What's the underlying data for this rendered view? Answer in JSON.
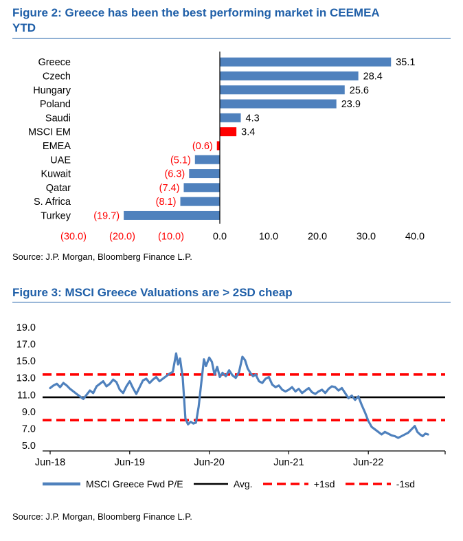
{
  "colors": {
    "title_blue": "#1f5fa8",
    "bar_blue": "#4f81bd",
    "line_blue": "#4f81bd",
    "highlight_red": "#ff0000",
    "negative_red": "#ff0000",
    "axis_black": "#000000"
  },
  "figure2": {
    "title_line1": "Figure 2: Greece has been the best performing market in CEEMEA",
    "title_line2": "YTD",
    "source": "Source: J.P. Morgan, Bloomberg Finance L.P."
  },
  "figure3": {
    "title": "Figure 3: MSCI Greece Valuations are > 2SD cheap",
    "source": "Source: J.P. Morgan, Bloomberg Finance L.P."
  },
  "chart_data": [
    {
      "type": "bar",
      "orientation": "horizontal",
      "title": "Figure 2: Greece has been the best performing market in CEEMEA YTD",
      "categories": [
        "Greece",
        "Czech",
        "Hungary",
        "Poland",
        "Saudi",
        "MSCI EM",
        "EMEA",
        "UAE",
        "Kuwait",
        "Qatar",
        "S. Africa",
        "Turkey"
      ],
      "values": [
        35.1,
        28.4,
        25.6,
        23.9,
        4.3,
        3.4,
        -0.6,
        -5.1,
        -6.3,
        -7.4,
        -8.1,
        -19.7
      ],
      "data_labels": [
        "35.1",
        "28.4",
        "25.6",
        "23.9",
        "4.3",
        "3.4",
        "(0.6)",
        "(5.1)",
        "(6.3)",
        "(7.4)",
        "(8.1)",
        "(19.7)"
      ],
      "bar_colors": [
        "#4f81bd",
        "#4f81bd",
        "#4f81bd",
        "#4f81bd",
        "#4f81bd",
        "#ff0000",
        "#ff0000",
        "#4f81bd",
        "#4f81bd",
        "#4f81bd",
        "#4f81bd",
        "#4f81bd"
      ],
      "xlim": [
        -30,
        40
      ],
      "x_ticks": [
        -30,
        -20,
        -10,
        0,
        10,
        20,
        30,
        40
      ],
      "x_tick_labels": [
        "(30.0)",
        "(20.0)",
        "(10.0)",
        "0.0",
        "10.0",
        "20.0",
        "30.0",
        "40.0"
      ],
      "grid": false,
      "legend_position": "none"
    },
    {
      "type": "line",
      "title": "Figure 3: MSCI Greece Valuations are > 2SD cheap",
      "x_axis": {
        "unit": "months since Jun-2018",
        "ticks": [
          0,
          12,
          24,
          36,
          48
        ],
        "tick_labels": [
          "Jun-18",
          "Jun-19",
          "Jun-20",
          "Jun-21",
          "Jun-22"
        ],
        "range": [
          0,
          59
        ]
      },
      "y_axis": {
        "ticks": [
          5,
          7,
          9,
          11,
          13,
          15,
          17,
          19
        ],
        "tick_labels": [
          "5.0",
          "7.0",
          "9.0",
          "11.0",
          "13.0",
          "15.0",
          "17.0",
          "19.0"
        ],
        "range": [
          4.3,
          19.6
        ]
      },
      "series": [
        {
          "name": "MSCI Greece Fwd P/E",
          "color": "#4f81bd",
          "style": "solid",
          "points": [
            [
              0,
              11.8
            ],
            [
              0.5,
              12.1
            ],
            [
              1,
              12.3
            ],
            [
              1.5,
              11.9
            ],
            [
              2,
              12.4
            ],
            [
              2.5,
              12.1
            ],
            [
              3,
              11.7
            ],
            [
              3.5,
              11.4
            ],
            [
              4,
              11.1
            ],
            [
              4.5,
              10.8
            ],
            [
              5,
              10.5
            ],
            [
              5.5,
              11.0
            ],
            [
              6,
              11.5
            ],
            [
              6.5,
              11.2
            ],
            [
              7,
              12.0
            ],
            [
              7.5,
              12.3
            ],
            [
              8,
              12.6
            ],
            [
              8.5,
              12.0
            ],
            [
              9,
              12.3
            ],
            [
              9.5,
              12.8
            ],
            [
              10,
              12.5
            ],
            [
              10.5,
              11.6
            ],
            [
              11,
              11.2
            ],
            [
              11.5,
              12.0
            ],
            [
              12,
              12.6
            ],
            [
              12.5,
              11.8
            ],
            [
              13,
              11.1
            ],
            [
              13.5,
              11.9
            ],
            [
              14,
              12.7
            ],
            [
              14.5,
              12.9
            ],
            [
              15,
              12.4
            ],
            [
              15.5,
              12.8
            ],
            [
              16,
              13.1
            ],
            [
              16.5,
              12.6
            ],
            [
              17,
              12.9
            ],
            [
              17.5,
              13.2
            ],
            [
              18,
              13.5
            ],
            [
              18.5,
              13.7
            ],
            [
              19,
              15.9
            ],
            [
              19.3,
              14.6
            ],
            [
              19.6,
              15.3
            ],
            [
              20,
              13.0
            ],
            [
              20.4,
              8.2
            ],
            [
              20.8,
              7.5
            ],
            [
              21.2,
              7.8
            ],
            [
              21.6,
              7.6
            ],
            [
              22,
              7.7
            ],
            [
              22.4,
              9.6
            ],
            [
              22.8,
              12.4
            ],
            [
              23.2,
              15.2
            ],
            [
              23.5,
              14.4
            ],
            [
              24,
              15.4
            ],
            [
              24.4,
              14.9
            ],
            [
              24.8,
              13.4
            ],
            [
              25.2,
              14.3
            ],
            [
              25.6,
              13.1
            ],
            [
              26,
              13.6
            ],
            [
              26.5,
              13.2
            ],
            [
              27,
              13.9
            ],
            [
              27.5,
              13.3
            ],
            [
              28,
              13.0
            ],
            [
              28.5,
              13.7
            ],
            [
              29,
              15.5
            ],
            [
              29.4,
              15.1
            ],
            [
              29.8,
              14.1
            ],
            [
              30.2,
              13.6
            ],
            [
              30.6,
              13.2
            ],
            [
              31,
              13.4
            ],
            [
              31.5,
              12.6
            ],
            [
              32,
              12.4
            ],
            [
              32.5,
              12.9
            ],
            [
              33,
              13.1
            ],
            [
              33.5,
              12.2
            ],
            [
              34,
              11.9
            ],
            [
              34.5,
              12.1
            ],
            [
              35,
              11.6
            ],
            [
              35.5,
              11.4
            ],
            [
              36,
              11.6
            ],
            [
              36.5,
              11.9
            ],
            [
              37,
              11.4
            ],
            [
              37.5,
              11.7
            ],
            [
              38,
              11.2
            ],
            [
              38.5,
              11.5
            ],
            [
              39,
              11.8
            ],
            [
              39.5,
              11.3
            ],
            [
              40,
              11.1
            ],
            [
              40.5,
              11.4
            ],
            [
              41,
              11.6
            ],
            [
              41.5,
              11.2
            ],
            [
              42,
              11.7
            ],
            [
              42.5,
              12.0
            ],
            [
              43,
              11.9
            ],
            [
              43.5,
              11.5
            ],
            [
              44,
              11.8
            ],
            [
              44.5,
              11.2
            ],
            [
              45,
              10.6
            ],
            [
              45.5,
              10.9
            ],
            [
              46,
              10.4
            ],
            [
              46.5,
              10.8
            ],
            [
              47,
              9.8
            ],
            [
              47.5,
              8.9
            ],
            [
              48,
              7.9
            ],
            [
              48.5,
              7.2
            ],
            [
              49,
              6.9
            ],
            [
              49.5,
              6.6
            ],
            [
              50,
              6.3
            ],
            [
              50.5,
              6.6
            ],
            [
              51,
              6.4
            ],
            [
              51.5,
              6.2
            ],
            [
              52,
              6.1
            ],
            [
              52.5,
              5.9
            ],
            [
              53,
              6.1
            ],
            [
              53.5,
              6.3
            ],
            [
              54,
              6.5
            ],
            [
              54.5,
              6.9
            ],
            [
              55,
              7.3
            ],
            [
              55.4,
              6.6
            ],
            [
              55.8,
              6.3
            ],
            [
              56.2,
              6.1
            ],
            [
              56.6,
              6.4
            ],
            [
              57,
              6.3
            ]
          ]
        }
      ],
      "reference_lines": [
        {
          "name": "Avg.",
          "value": 10.7,
          "color": "#000000",
          "style": "solid",
          "stroke_width": 2.6
        },
        {
          "name": "+1sd",
          "value": 13.4,
          "color": "#ff0000",
          "style": "dashed",
          "stroke_width": 3.6
        },
        {
          "name": "-1sd",
          "value": 8.0,
          "color": "#ff0000",
          "style": "dashed",
          "stroke_width": 3.6
        }
      ],
      "legend": {
        "position": "bottom",
        "items": [
          {
            "label": "MSCI Greece Fwd P/E",
            "color": "#4f81bd",
            "style": "solid"
          },
          {
            "label": "Avg.",
            "color": "#000000",
            "style": "solid"
          },
          {
            "label": "+1sd",
            "color": "#ff0000",
            "style": "dashed"
          },
          {
            "label": "-1sd",
            "color": "#ff0000",
            "style": "dashed"
          }
        ]
      },
      "grid": false
    }
  ]
}
